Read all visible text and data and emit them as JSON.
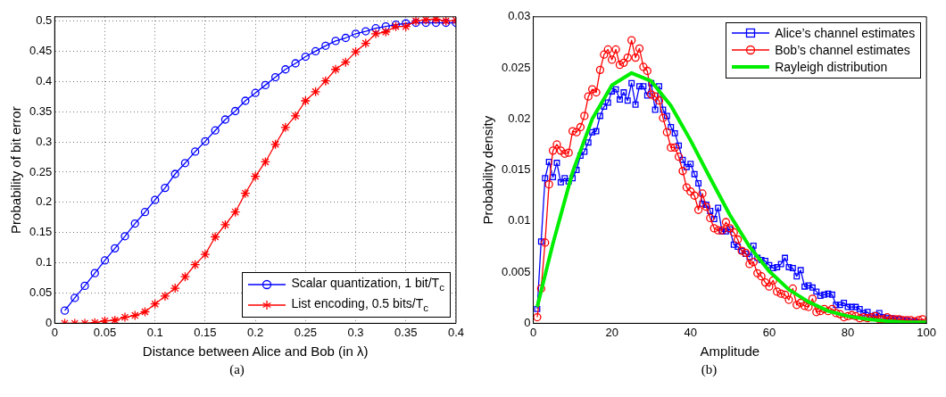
{
  "chart_data": [
    {
      "type": "line",
      "xlabel": "Distance between Alice and Bob (in λ)",
      "ylabel": "Probability of bit error",
      "x": [
        0.01,
        0.02,
        0.03,
        0.04,
        0.05,
        0.06,
        0.07,
        0.08,
        0.09,
        0.1,
        0.11,
        0.12,
        0.13,
        0.14,
        0.15,
        0.16,
        0.17,
        0.18,
        0.19,
        0.2,
        0.21,
        0.22,
        0.23,
        0.24,
        0.25,
        0.26,
        0.27,
        0.28,
        0.29,
        0.3,
        0.31,
        0.32,
        0.33,
        0.34,
        0.35,
        0.36,
        0.37,
        0.38,
        0.39,
        0.4
      ],
      "series": [
        {
          "name": "Scalar quantization, 1 bit/T$_{c}$",
          "color": "#0000ff",
          "marker": "circle",
          "values": [
            0.021,
            0.042,
            0.062,
            0.083,
            0.104,
            0.124,
            0.144,
            0.165,
            0.184,
            0.204,
            0.224,
            0.247,
            0.265,
            0.284,
            0.301,
            0.319,
            0.337,
            0.351,
            0.368,
            0.381,
            0.394,
            0.407,
            0.42,
            0.43,
            0.441,
            0.45,
            0.459,
            0.467,
            0.472,
            0.479,
            0.483,
            0.488,
            0.491,
            0.494,
            0.496,
            0.497,
            0.497,
            0.497,
            0.497,
            0.497
          ]
        },
        {
          "name": "List encoding, 0.5 bits/T$_{c}$",
          "color": "#ff0000",
          "marker": "cross",
          "values": [
            0,
            0,
            0,
            0.001,
            0.004,
            0.005,
            0.01,
            0.013,
            0.019,
            0.032,
            0.045,
            0.058,
            0.077,
            0.097,
            0.114,
            0.143,
            0.163,
            0.184,
            0.215,
            0.243,
            0.267,
            0.296,
            0.324,
            0.343,
            0.368,
            0.383,
            0.401,
            0.42,
            0.432,
            0.449,
            0.463,
            0.479,
            0.482,
            0.491,
            0.491,
            0.5,
            0.502,
            0.503,
            0.5,
            0.501
          ]
        }
      ],
      "xlim": [
        0,
        0.4
      ],
      "xticks": [
        0,
        0.05,
        0.1,
        0.15,
        0.2,
        0.25,
        0.3,
        0.35,
        0.4
      ],
      "ylim": [
        0,
        0.507
      ],
      "yticks": [
        0,
        0.05,
        0.1,
        0.15,
        0.2,
        0.25,
        0.3,
        0.35,
        0.4,
        0.45,
        0.5
      ],
      "grid": true,
      "legend": "bottom right",
      "line_style": "solid",
      "annotations": [
        "(a)"
      ]
    },
    {
      "type": "line",
      "xlabel": "Amplitude",
      "ylabel": "Probability density",
      "x": [
        1,
        2,
        3,
        4,
        5,
        6,
        7,
        8,
        9,
        10,
        11,
        12,
        13,
        14,
        15,
        16,
        17,
        18,
        19,
        20,
        21,
        22,
        23,
        24,
        25,
        26,
        27,
        28,
        29,
        30,
        31,
        32,
        33,
        34,
        35,
        36,
        37,
        38,
        39,
        40,
        41,
        42,
        43,
        44,
        45,
        46,
        47,
        48,
        49,
        50,
        51,
        52,
        53,
        54,
        55,
        56,
        57,
        58,
        59,
        60,
        61,
        62,
        63,
        64,
        65,
        66,
        67,
        68,
        69,
        70,
        71,
        72,
        73,
        74,
        75,
        76,
        77,
        78,
        79,
        80,
        81,
        82,
        83,
        84,
        85,
        86,
        87,
        88,
        89,
        90,
        91,
        92,
        93,
        94,
        95,
        96,
        97,
        98,
        99,
        100
      ],
      "series": [
        {
          "name": "Alice’s channel estimates",
          "color": "#0000ff",
          "marker": "square",
          "values": [
            0.0014,
            0.008,
            0.0142,
            0.0158,
            0.0143,
            0.0157,
            0.0138,
            0.0142,
            0.0139,
            0.0142,
            0.015,
            0.0164,
            0.0168,
            0.0177,
            0.0187,
            0.0188,
            0.0203,
            0.0212,
            0.0216,
            0.0227,
            0.0229,
            0.0219,
            0.0226,
            0.0218,
            0.0235,
            0.0214,
            0.0232,
            0.0232,
            0.0223,
            0.0235,
            0.0209,
            0.0232,
            0.0209,
            0.0203,
            0.0192,
            0.0186,
            0.0174,
            0.016,
            0.0153,
            0.0156,
            0.0146,
            0.0137,
            0.0117,
            0.0116,
            0.011,
            0.0102,
            0.0113,
            0.009,
            0.009,
            0.0092,
            0.0077,
            0.0075,
            0.0071,
            0.0068,
            0.0065,
            0.0076,
            0.0064,
            0.0062,
            0.0061,
            0.0057,
            0.0054,
            0.0055,
            0.0058,
            0.0064,
            0.0055,
            0.0054,
            0.0046,
            0.0052,
            0.0036,
            0.0037,
            0.0035,
            0.0031,
            0.0027,
            0.0028,
            0.0029,
            0.0028,
            0.0018,
            0.0018,
            0.002,
            0.0016,
            0.0016,
            0.0016,
            0.0014,
            0.001,
            0.0011,
            0.0007,
            0.0008,
            0.001,
            0.0006,
            0.0005,
            0.0005,
            0.0004,
            0.0004,
            0.0003,
            0.0003,
            0.0002,
            0.0002,
            0.0001,
            null,
            null
          ]
        },
        {
          "name": "Bob’s channel estimates",
          "color": "#ff0000",
          "marker": "circle",
          "values": [
            0.0006,
            0.0034,
            0.0079,
            0.0136,
            0.0169,
            0.0175,
            0.0169,
            0.0166,
            0.0167,
            0.0188,
            0.0187,
            0.0192,
            0.0203,
            0.0222,
            0.0229,
            0.0226,
            0.0248,
            0.0263,
            0.0268,
            0.0258,
            0.0268,
            0.0253,
            0.0255,
            0.026,
            0.0277,
            0.026,
            0.0269,
            0.0251,
            0.0247,
            0.0224,
            0.0222,
            0.0218,
            0.0201,
            0.0187,
            0.0172,
            0.0172,
            0.0163,
            0.0149,
            0.0133,
            0.0129,
            0.0125,
            0.0111,
            0.0127,
            0.0114,
            0.0103,
            0.0093,
            0.0091,
            0.0091,
            0.0099,
            0.0093,
            0.0089,
            0.0082,
            0.0071,
            0.0069,
            0.0058,
            0.006,
            0.0049,
            0.0046,
            0.004,
            0.0036,
            0.0042,
            0.0031,
            0.0029,
            0.0028,
            0.0023,
            0.0034,
            0.0018,
            0.002,
            0.0017,
            0.0016,
            0.0024,
            0.0011,
            0.0012,
            0.0014,
            0.0012,
            0.0014,
            0.001,
            0.0009,
            0.0006,
            0.0007,
            0.0008,
            0.0007,
            0.0005,
            0.0006,
            0.0005,
            0.0006,
            0.0007,
            0.0004,
            0.0004,
            0.0006,
            0.0004,
            0.0004,
            0.0004,
            0.0003,
            0.0003,
            0.0003,
            0.0002,
            0.0003,
            0.0004,
            0.0001
          ]
        },
        {
          "name": "Rayleigh distribution",
          "color": "#00ee00",
          "marker": "none",
          "x": [
            1,
            5,
            10,
            15,
            20,
            25,
            30,
            35,
            40,
            45,
            50,
            55,
            60,
            65,
            70,
            75,
            80,
            85,
            90,
            95,
            100
          ],
          "values": [
            0.0016,
            0.0078,
            0.0148,
            0.02,
            0.0233,
            0.0245,
            0.0237,
            0.0213,
            0.0179,
            0.0142,
            0.0106,
            0.0075,
            0.0051,
            0.0033,
            0.0021,
            0.0012,
            0.0007,
            0.0004,
            0.0002,
            0.0001,
            0.0001
          ]
        }
      ],
      "xlim": [
        0,
        100
      ],
      "xticks": [
        0,
        20,
        40,
        60,
        80,
        100
      ],
      "ylim": [
        0,
        0.03
      ],
      "yticks": [
        0,
        0.005,
        0.01,
        0.015,
        0.02,
        0.025,
        0.03
      ],
      "legend": "top right",
      "line_style": "solid",
      "annotations": [
        "(b)"
      ]
    }
  ]
}
